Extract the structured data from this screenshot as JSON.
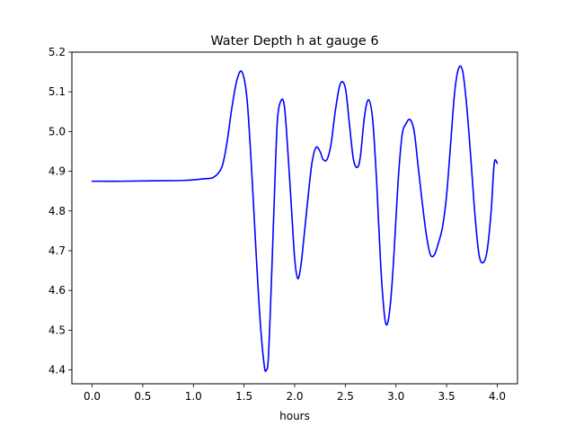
{
  "chart_data": {
    "type": "line",
    "title": "Water Depth h at gauge 6",
    "xlabel": "hours",
    "ylabel": "",
    "xlim": [
      -0.2,
      4.2
    ],
    "ylim": [
      4.365,
      5.2
    ],
    "xticks": [
      0.0,
      0.5,
      1.0,
      1.5,
      2.0,
      2.5,
      3.0,
      3.5,
      4.0
    ],
    "xtick_labels": [
      "0.0",
      "0.5",
      "1.0",
      "1.5",
      "2.0",
      "2.5",
      "3.0",
      "3.5",
      "4.0"
    ],
    "yticks": [
      4.4,
      4.5,
      4.6,
      4.7,
      4.8,
      4.9,
      5.0,
      5.1,
      5.2
    ],
    "ytick_labels": [
      "4.4",
      "4.5",
      "4.6",
      "4.7",
      "4.8",
      "4.9",
      "5.0",
      "5.1",
      "5.2"
    ],
    "grid": false,
    "legend": null,
    "series": [
      {
        "color": "#0000ff",
        "x": [
          0.0,
          0.3,
          0.6,
          0.9,
          1.1,
          1.2,
          1.28,
          1.33,
          1.38,
          1.43,
          1.48,
          1.53,
          1.58,
          1.62,
          1.66,
          1.7,
          1.72,
          1.74,
          1.77,
          1.8,
          1.83,
          1.87,
          1.9,
          1.93,
          1.97,
          2.0,
          2.03,
          2.06,
          2.09,
          2.13,
          2.17,
          2.21,
          2.25,
          2.28,
          2.32,
          2.36,
          2.4,
          2.45,
          2.5,
          2.54,
          2.58,
          2.62,
          2.65,
          2.69,
          2.73,
          2.77,
          2.81,
          2.85,
          2.89,
          2.92,
          2.95,
          2.98,
          3.02,
          3.06,
          3.1,
          3.14,
          3.18,
          3.22,
          3.26,
          3.3,
          3.34,
          3.38,
          3.42,
          3.46,
          3.5,
          3.54,
          3.58,
          3.62,
          3.66,
          3.7,
          3.74,
          3.78,
          3.82,
          3.86,
          3.9,
          3.94,
          3.97,
          4.0
        ],
        "y": [
          4.875,
          4.875,
          4.876,
          4.877,
          4.881,
          4.885,
          4.91,
          4.97,
          5.06,
          5.13,
          5.15,
          5.08,
          4.88,
          4.69,
          4.52,
          4.41,
          4.4,
          4.43,
          4.62,
          4.84,
          5.03,
          5.08,
          5.06,
          4.96,
          4.8,
          4.68,
          4.63,
          4.66,
          4.73,
          4.83,
          4.92,
          4.96,
          4.95,
          4.93,
          4.93,
          4.97,
          5.05,
          5.12,
          5.11,
          5.02,
          4.93,
          4.91,
          4.94,
          5.04,
          5.08,
          5.03,
          4.87,
          4.66,
          4.53,
          4.52,
          4.58,
          4.69,
          4.87,
          4.99,
          5.02,
          5.03,
          5.0,
          4.91,
          4.82,
          4.74,
          4.69,
          4.69,
          4.72,
          4.76,
          4.84,
          4.97,
          5.1,
          5.16,
          5.15,
          5.06,
          4.93,
          4.79,
          4.69,
          4.67,
          4.7,
          4.8,
          4.92,
          4.92
        ]
      }
    ]
  }
}
